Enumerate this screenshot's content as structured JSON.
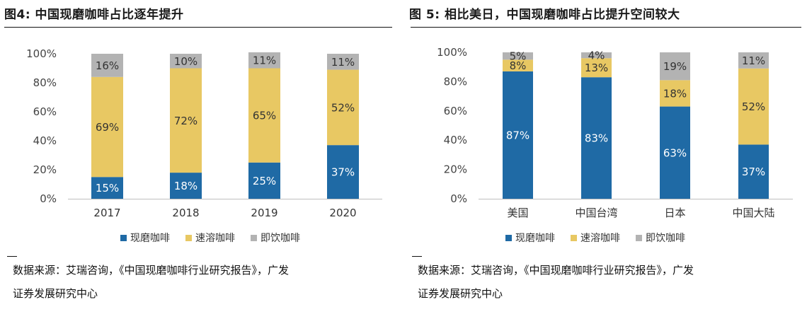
{
  "figures": [
    {
      "title": "图4:  中国现磨咖啡占比逐年提升",
      "source_line1": "数据来源：艾瑞咨询，《中国现磨咖啡行业研究报告》，广发",
      "source_line2": "证券发展研究中心"
    },
    {
      "title": "图 5:  相比美日，中国现磨咖啡占比提升空间较大",
      "source_line1": "数据来源：艾瑞咨询，《中国现磨咖啡行业研究报告》，广发",
      "source_line2": "证券发展研究中心"
    }
  ],
  "colors": {
    "现磨咖啡": "#1f6aa5",
    "速溶咖啡": "#e8c863",
    "即饮咖啡": "#b3b3b3",
    "axis": "#bfbfbf"
  },
  "chart_data": [
    {
      "type": "bar",
      "stacked": true,
      "categories": [
        "2017",
        "2018",
        "2019",
        "2020"
      ],
      "series": [
        {
          "name": "现磨咖啡",
          "values": [
            15,
            18,
            25,
            37
          ],
          "labels": [
            "15%",
            "18%",
            "25%",
            "37%"
          ]
        },
        {
          "name": "速溶咖啡",
          "values": [
            69,
            72,
            65,
            52
          ],
          "labels": [
            "69%",
            "72%",
            "65%",
            "52%"
          ]
        },
        {
          "name": "即饮咖啡",
          "values": [
            16,
            10,
            11,
            11
          ],
          "labels": [
            "16%",
            "10%",
            "11%",
            "11%"
          ]
        }
      ],
      "ylim": [
        0,
        100
      ],
      "yticks": [
        "0%",
        "20%",
        "40%",
        "60%",
        "80%",
        "100%"
      ],
      "legend": "bottom",
      "grid": false
    },
    {
      "type": "bar",
      "stacked": true,
      "categories": [
        "美国",
        "中国台湾",
        "日本",
        "中国大陆"
      ],
      "series": [
        {
          "name": "现磨咖啡",
          "values": [
            87,
            83,
            63,
            37
          ],
          "labels": [
            "87%",
            "83%",
            "63%",
            "37%"
          ]
        },
        {
          "name": "速溶咖啡",
          "values": [
            8,
            13,
            18,
            52
          ],
          "labels": [
            "8%",
            "13%",
            "18%",
            "52%"
          ]
        },
        {
          "name": "即饮咖啡",
          "values": [
            5,
            4,
            19,
            11
          ],
          "labels": [
            "5%",
            "4%",
            "19%",
            "11%"
          ]
        }
      ],
      "ylim": [
        0,
        100
      ],
      "yticks": [
        "0%",
        "20%",
        "40%",
        "60%",
        "80%",
        "100%"
      ],
      "legend": "bottom",
      "grid": false
    }
  ]
}
